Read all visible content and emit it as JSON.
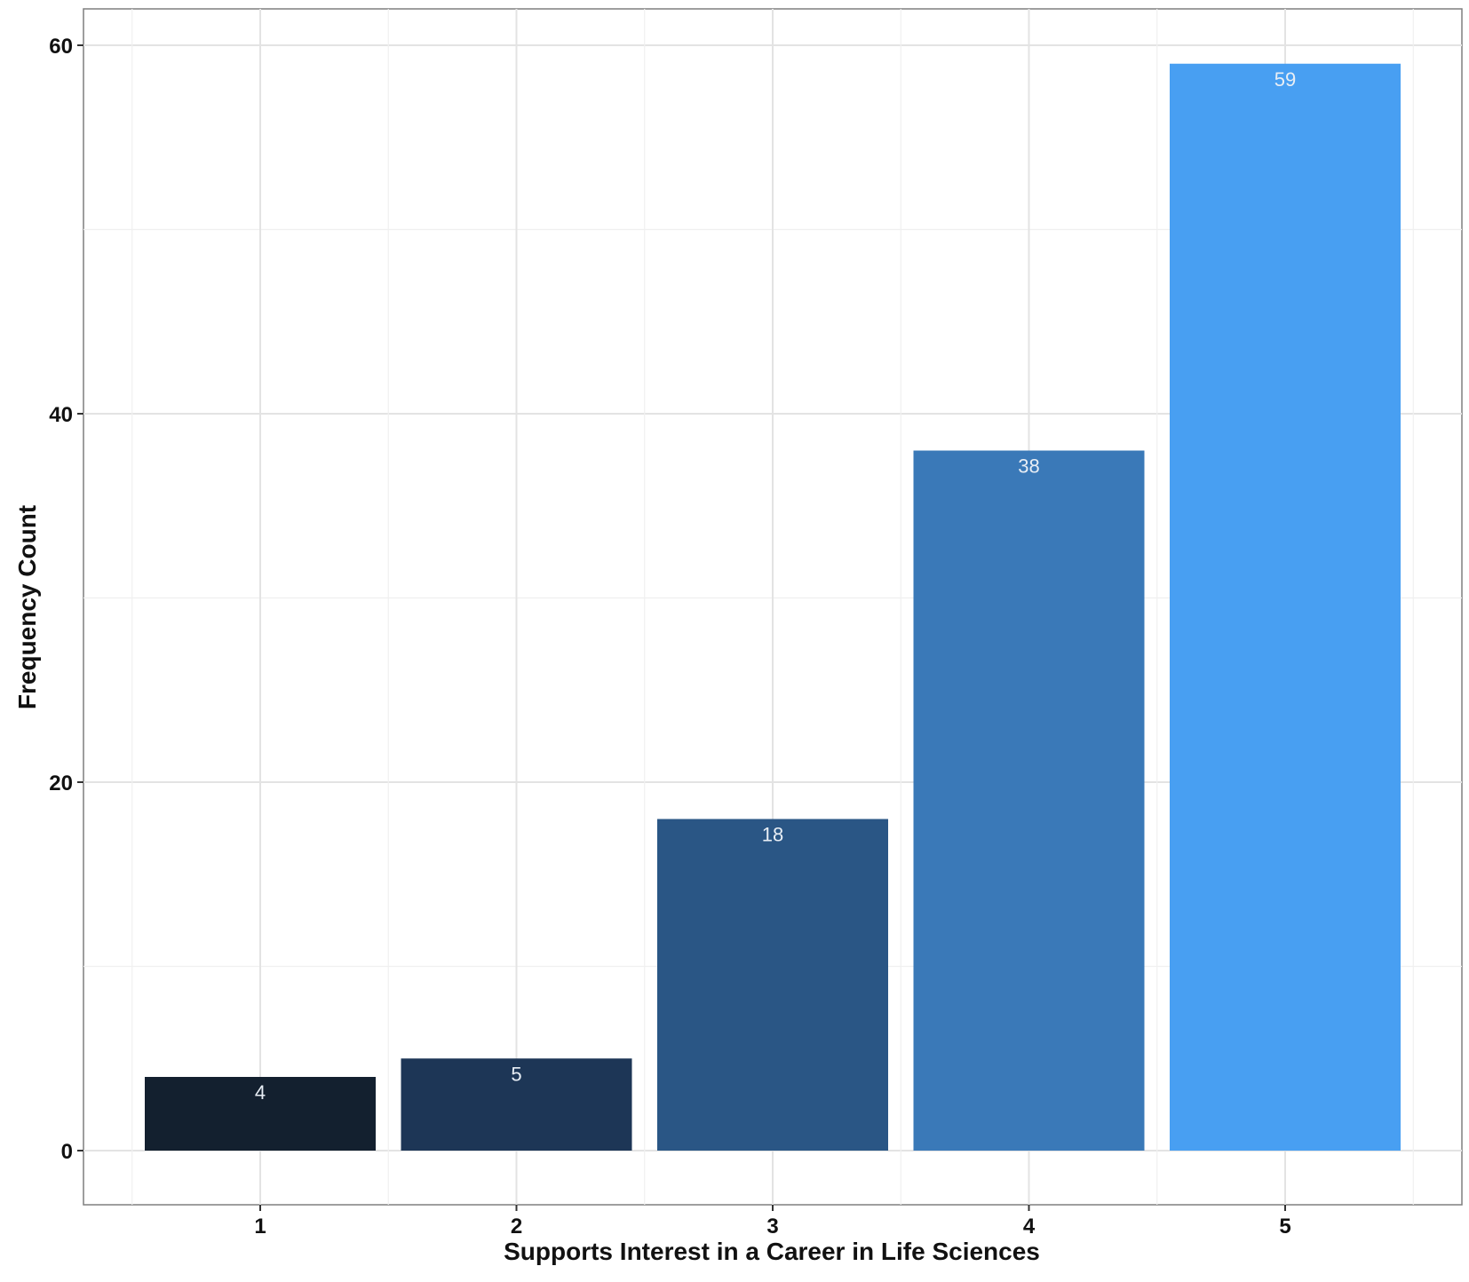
{
  "chart_data": {
    "type": "bar",
    "categories": [
      "1",
      "2",
      "3",
      "4",
      "5"
    ],
    "values": [
      4,
      5,
      18,
      38,
      59
    ],
    "data_labels": [
      "4",
      "5",
      "18",
      "38",
      "59"
    ],
    "colors": [
      "#13202F",
      "#1D3656",
      "#2A5685",
      "#3A79B8",
      "#489FF2"
    ],
    "title": "",
    "xlabel": "Supports Interest in a Career in Life Sciences",
    "ylabel": "Frequency Count",
    "yticks": [
      0,
      20,
      40,
      60
    ],
    "ytick_labels": [
      "0",
      "20",
      "40",
      "60"
    ],
    "ylim": [
      -3,
      62
    ],
    "grid": true,
    "legend": "none"
  }
}
